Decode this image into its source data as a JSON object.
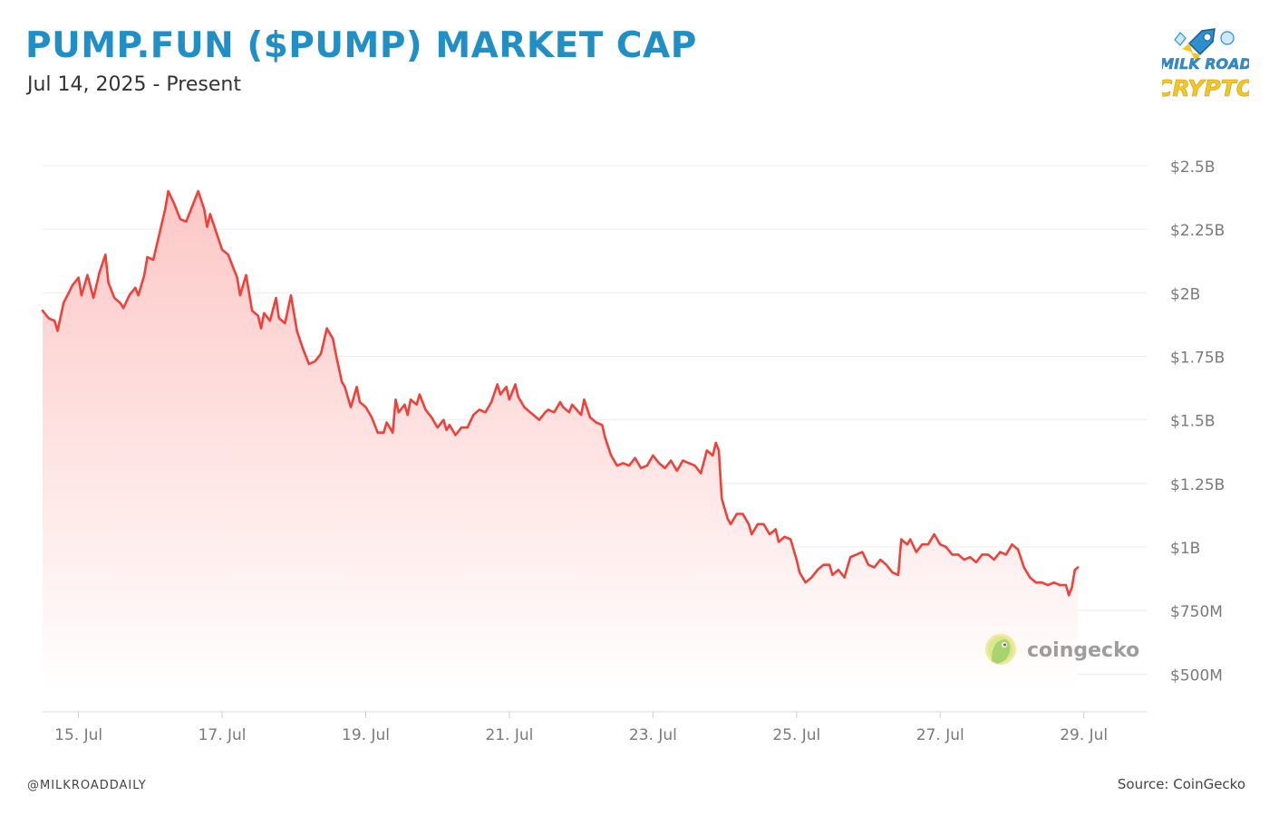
{
  "header": {
    "title": "PUMP.FUN ($PUMP) MARKET CAP",
    "subtitle": "Jul 14, 2025 - Present"
  },
  "brand": {
    "logo_line1": "MILK ROAD",
    "logo_line2": "CRYPTO",
    "watermark": "coingecko"
  },
  "footer": {
    "handle": "@MILKROADDAILY",
    "source": "Source: CoinGecko"
  },
  "colors": {
    "title": "#1f8fc6",
    "line": "#f0403a",
    "fill_top": "#fcc5c3",
    "fill_bottom": "#ffffff",
    "grid": "#ececec",
    "tick_text": "#7a7a7a"
  },
  "chart_data": {
    "type": "area",
    "y_unit": "USD",
    "ylim": [
      430000000,
      2500000000
    ],
    "yticks": [
      500000000,
      750000000,
      1000000000,
      1250000000,
      1500000000,
      1750000000,
      2000000000,
      2250000000,
      2500000000
    ],
    "ytick_labels": [
      "$500M",
      "$750M",
      "$1B",
      "$1.25B",
      "$1.5B",
      "$1.75B",
      "$2B",
      "$2.25B",
      "$2.5B"
    ],
    "xlim": [
      "2025-07-14T12:00",
      "2025-07-29T21:00"
    ],
    "xticks": [
      "2025-07-15",
      "2025-07-17",
      "2025-07-19",
      "2025-07-21",
      "2025-07-23",
      "2025-07-25",
      "2025-07-27",
      "2025-07-29"
    ],
    "xtick_labels": [
      "15. Jul",
      "17. Jul",
      "19. Jul",
      "21. Jul",
      "23. Jul",
      "25. Jul",
      "27. Jul",
      "29. Jul"
    ],
    "grid": true,
    "series": [
      {
        "points": [
          [
            "2025-07-14T12:00",
            1.93
          ],
          [
            "2025-07-14T14:00",
            1.9
          ],
          [
            "2025-07-14T16:00",
            1.89
          ],
          [
            "2025-07-14T17:00",
            1.85
          ],
          [
            "2025-07-14T19:00",
            1.96
          ],
          [
            "2025-07-14T22:00",
            2.03
          ],
          [
            "2025-07-15T00:00",
            2.06
          ],
          [
            "2025-07-15T01:00",
            1.99
          ],
          [
            "2025-07-15T03:00",
            2.07
          ],
          [
            "2025-07-15T05:00",
            1.98
          ],
          [
            "2025-07-15T07:00",
            2.08
          ],
          [
            "2025-07-15T09:00",
            2.15
          ],
          [
            "2025-07-15T10:00",
            2.04
          ],
          [
            "2025-07-15T12:00",
            1.98
          ],
          [
            "2025-07-15T14:00",
            1.96
          ],
          [
            "2025-07-15T15:00",
            1.94
          ],
          [
            "2025-07-15T17:00",
            1.99
          ],
          [
            "2025-07-15T19:00",
            2.02
          ],
          [
            "2025-07-15T20:00",
            1.99
          ],
          [
            "2025-07-15T22:00",
            2.07
          ],
          [
            "2025-07-15T23:00",
            2.14
          ],
          [
            "2025-07-16T01:00",
            2.13
          ],
          [
            "2025-07-16T03:00",
            2.23
          ],
          [
            "2025-07-16T05:00",
            2.33
          ],
          [
            "2025-07-16T06:00",
            2.4
          ],
          [
            "2025-07-16T08:00",
            2.35
          ],
          [
            "2025-07-16T10:00",
            2.29
          ],
          [
            "2025-07-16T12:00",
            2.28
          ],
          [
            "2025-07-16T14:00",
            2.34
          ],
          [
            "2025-07-16T16:00",
            2.4
          ],
          [
            "2025-07-16T18:00",
            2.33
          ],
          [
            "2025-07-16T19:00",
            2.26
          ],
          [
            "2025-07-16T20:00",
            2.31
          ],
          [
            "2025-07-16T22:00",
            2.24
          ],
          [
            "2025-07-17T00:00",
            2.17
          ],
          [
            "2025-07-17T02:00",
            2.15
          ],
          [
            "2025-07-17T04:00",
            2.09
          ],
          [
            "2025-07-17T05:00",
            2.06
          ],
          [
            "2025-07-17T06:00",
            1.99
          ],
          [
            "2025-07-17T08:00",
            2.07
          ],
          [
            "2025-07-17T10:00",
            1.93
          ],
          [
            "2025-07-17T12:00",
            1.91
          ],
          [
            "2025-07-17T13:00",
            1.86
          ],
          [
            "2025-07-17T14:00",
            1.92
          ],
          [
            "2025-07-17T16:00",
            1.89
          ],
          [
            "2025-07-17T18:00",
            1.98
          ],
          [
            "2025-07-17T19:00",
            1.9
          ],
          [
            "2025-07-17T21:00",
            1.88
          ],
          [
            "2025-07-17T23:00",
            1.99
          ],
          [
            "2025-07-18T01:00",
            1.85
          ],
          [
            "2025-07-18T03:00",
            1.78
          ],
          [
            "2025-07-18T05:00",
            1.72
          ],
          [
            "2025-07-18T07:00",
            1.73
          ],
          [
            "2025-07-18T09:00",
            1.76
          ],
          [
            "2025-07-18T11:00",
            1.86
          ],
          [
            "2025-07-18T13:00",
            1.82
          ],
          [
            "2025-07-18T14:00",
            1.76
          ],
          [
            "2025-07-18T16:00",
            1.65
          ],
          [
            "2025-07-18T17:00",
            1.63
          ],
          [
            "2025-07-18T19:00",
            1.55
          ],
          [
            "2025-07-18T21:00",
            1.63
          ],
          [
            "2025-07-18T22:00",
            1.57
          ],
          [
            "2025-07-19T00:00",
            1.55
          ],
          [
            "2025-07-19T02:00",
            1.51
          ],
          [
            "2025-07-19T03:00",
            1.48
          ],
          [
            "2025-07-19T04:00",
            1.45
          ],
          [
            "2025-07-19T06:00",
            1.45
          ],
          [
            "2025-07-19T07:00",
            1.49
          ],
          [
            "2025-07-19T09:00",
            1.45
          ],
          [
            "2025-07-19T10:00",
            1.58
          ],
          [
            "2025-07-19T11:00",
            1.53
          ],
          [
            "2025-07-19T13:00",
            1.56
          ],
          [
            "2025-07-19T14:00",
            1.52
          ],
          [
            "2025-07-19T15:00",
            1.58
          ],
          [
            "2025-07-19T17:00",
            1.56
          ],
          [
            "2025-07-19T18:00",
            1.6
          ],
          [
            "2025-07-19T20:00",
            1.54
          ],
          [
            "2025-07-19T22:00",
            1.51
          ],
          [
            "2025-07-20T00:00",
            1.47
          ],
          [
            "2025-07-20T02:00",
            1.5
          ],
          [
            "2025-07-20T03:00",
            1.46
          ],
          [
            "2025-07-20T04:00",
            1.48
          ],
          [
            "2025-07-20T06:00",
            1.44
          ],
          [
            "2025-07-20T08:00",
            1.47
          ],
          [
            "2025-07-20T10:00",
            1.47
          ],
          [
            "2025-07-20T12:00",
            1.52
          ],
          [
            "2025-07-20T14:00",
            1.54
          ],
          [
            "2025-07-20T16:00",
            1.53
          ],
          [
            "2025-07-20T18:00",
            1.57
          ],
          [
            "2025-07-20T20:00",
            1.64
          ],
          [
            "2025-07-20T21:00",
            1.6
          ],
          [
            "2025-07-20T23:00",
            1.63
          ],
          [
            "2025-07-21T00:00",
            1.58
          ],
          [
            "2025-07-21T02:00",
            1.64
          ],
          [
            "2025-07-21T03:00",
            1.59
          ],
          [
            "2025-07-21T05:00",
            1.55
          ],
          [
            "2025-07-21T07:00",
            1.53
          ],
          [
            "2025-07-21T09:00",
            1.51
          ],
          [
            "2025-07-21T10:00",
            1.5
          ],
          [
            "2025-07-21T12:00",
            1.53
          ],
          [
            "2025-07-21T13:00",
            1.54
          ],
          [
            "2025-07-21T15:00",
            1.53
          ],
          [
            "2025-07-21T17:00",
            1.57
          ],
          [
            "2025-07-21T18:00",
            1.55
          ],
          [
            "2025-07-21T20:00",
            1.53
          ],
          [
            "2025-07-21T21:00",
            1.56
          ],
          [
            "2025-07-22T00:00",
            1.52
          ],
          [
            "2025-07-22T01:00",
            1.58
          ],
          [
            "2025-07-22T03:00",
            1.51
          ],
          [
            "2025-07-22T05:00",
            1.49
          ],
          [
            "2025-07-22T07:00",
            1.48
          ],
          [
            "2025-07-22T08:00",
            1.43
          ],
          [
            "2025-07-22T10:00",
            1.36
          ],
          [
            "2025-07-22T12:00",
            1.32
          ],
          [
            "2025-07-22T14:00",
            1.33
          ],
          [
            "2025-07-22T16:00",
            1.32
          ],
          [
            "2025-07-22T18:00",
            1.35
          ],
          [
            "2025-07-22T20:00",
            1.31
          ],
          [
            "2025-07-22T22:00",
            1.32
          ],
          [
            "2025-07-23T00:00",
            1.36
          ],
          [
            "2025-07-23T02:00",
            1.33
          ],
          [
            "2025-07-23T04:00",
            1.31
          ],
          [
            "2025-07-23T06:00",
            1.34
          ],
          [
            "2025-07-23T08:00",
            1.3
          ],
          [
            "2025-07-23T10:00",
            1.34
          ],
          [
            "2025-07-23T12:00",
            1.33
          ],
          [
            "2025-07-23T14:00",
            1.32
          ],
          [
            "2025-07-23T16:00",
            1.29
          ],
          [
            "2025-07-23T18:00",
            1.38
          ],
          [
            "2025-07-23T20:00",
            1.36
          ],
          [
            "2025-07-23T21:00",
            1.41
          ],
          [
            "2025-07-23T22:00",
            1.38
          ],
          [
            "2025-07-23T23:00",
            1.19
          ],
          [
            "2025-07-24T01:00",
            1.11
          ],
          [
            "2025-07-24T02:00",
            1.09
          ],
          [
            "2025-07-24T04:00",
            1.13
          ],
          [
            "2025-07-24T06:00",
            1.13
          ],
          [
            "2025-07-24T08:00",
            1.09
          ],
          [
            "2025-07-24T09:00",
            1.05
          ],
          [
            "2025-07-24T11:00",
            1.09
          ],
          [
            "2025-07-24T13:00",
            1.09
          ],
          [
            "2025-07-24T15:00",
            1.05
          ],
          [
            "2025-07-24T17:00",
            1.07
          ],
          [
            "2025-07-24T18:00",
            1.02
          ],
          [
            "2025-07-24T20:00",
            1.04
          ],
          [
            "2025-07-24T22:00",
            1.03
          ],
          [
            "2025-07-25T00:00",
            0.95
          ],
          [
            "2025-07-25T01:00",
            0.9
          ],
          [
            "2025-07-25T03:00",
            0.86
          ],
          [
            "2025-07-25T05:00",
            0.88
          ],
          [
            "2025-07-25T07:00",
            0.91
          ],
          [
            "2025-07-25T09:00",
            0.93
          ],
          [
            "2025-07-25T11:00",
            0.93
          ],
          [
            "2025-07-25T12:00",
            0.89
          ],
          [
            "2025-07-25T14:00",
            0.91
          ],
          [
            "2025-07-25T16:00",
            0.88
          ],
          [
            "2025-07-25T18:00",
            0.96
          ],
          [
            "2025-07-25T20:00",
            0.97
          ],
          [
            "2025-07-25T22:00",
            0.98
          ],
          [
            "2025-07-26T00:00",
            0.93
          ],
          [
            "2025-07-26T02:00",
            0.92
          ],
          [
            "2025-07-26T04:00",
            0.95
          ],
          [
            "2025-07-26T06:00",
            0.93
          ],
          [
            "2025-07-26T08:00",
            0.9
          ],
          [
            "2025-07-26T10:00",
            0.89
          ],
          [
            "2025-07-26T11:00",
            1.03
          ],
          [
            "2025-07-26T13:00",
            1.01
          ],
          [
            "2025-07-26T14:00",
            1.03
          ],
          [
            "2025-07-26T16:00",
            0.98
          ],
          [
            "2025-07-26T18:00",
            1.01
          ],
          [
            "2025-07-26T20:00",
            1.01
          ],
          [
            "2025-07-26T22:00",
            1.05
          ],
          [
            "2025-07-27T00:00",
            1.01
          ],
          [
            "2025-07-27T02:00",
            1.0
          ],
          [
            "2025-07-27T04:00",
            0.97
          ],
          [
            "2025-07-27T06:00",
            0.97
          ],
          [
            "2025-07-27T08:00",
            0.95
          ],
          [
            "2025-07-27T10:00",
            0.96
          ],
          [
            "2025-07-27T12:00",
            0.94
          ],
          [
            "2025-07-27T14:00",
            0.97
          ],
          [
            "2025-07-27T16:00",
            0.97
          ],
          [
            "2025-07-27T18:00",
            0.95
          ],
          [
            "2025-07-27T20:00",
            0.98
          ],
          [
            "2025-07-27T22:00",
            0.97
          ],
          [
            "2025-07-28T00:00",
            1.01
          ],
          [
            "2025-07-28T02:00",
            0.99
          ],
          [
            "2025-07-28T04:00",
            0.92
          ],
          [
            "2025-07-28T06:00",
            0.88
          ],
          [
            "2025-07-28T08:00",
            0.86
          ],
          [
            "2025-07-28T10:00",
            0.86
          ],
          [
            "2025-07-28T12:00",
            0.85
          ],
          [
            "2025-07-28T14:00",
            0.86
          ],
          [
            "2025-07-28T16:00",
            0.85
          ],
          [
            "2025-07-28T18:00",
            0.85
          ],
          [
            "2025-07-28T19:00",
            0.81
          ],
          [
            "2025-07-28T20:00",
            0.84
          ],
          [
            "2025-07-28T21:00",
            0.91
          ],
          [
            "2025-07-28T22:00",
            0.92
          ]
        ]
      }
    ]
  }
}
